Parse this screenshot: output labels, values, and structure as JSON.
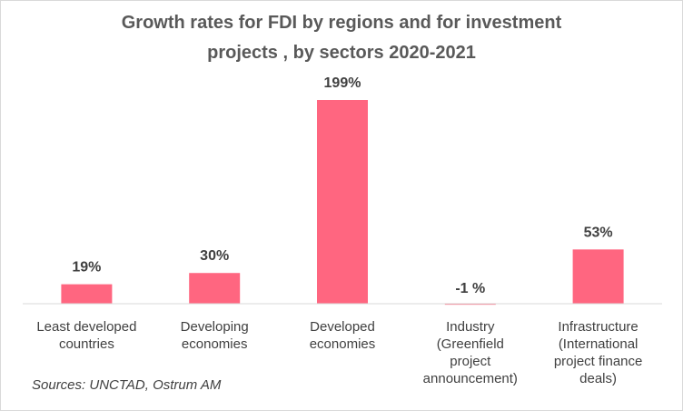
{
  "chart_data": {
    "type": "bar",
    "title_lines": [
      "Growth rates for FDI by regions and for investment",
      "projects , by sectors 2020-2021"
    ],
    "categories": [
      [
        "Least developed",
        "countries"
      ],
      [
        "Developing",
        "economies"
      ],
      [
        "Developed",
        "economies"
      ],
      [
        "Industry",
        "(Greenfield",
        "project",
        "announcement)"
      ],
      [
        "Infrastructure",
        "(International",
        "project finance",
        "deals)"
      ]
    ],
    "values": [
      19,
      30,
      199,
      -1,
      53
    ],
    "data_labels": [
      "19%",
      "30%",
      "199%",
      "-1 %",
      "53%"
    ],
    "unit": "%",
    "ylim": [
      -1,
      199
    ],
    "bar_color": "#ff6680",
    "grid": false,
    "legend": "none"
  },
  "source": "Sources: UNCTAD, Ostrum AM"
}
